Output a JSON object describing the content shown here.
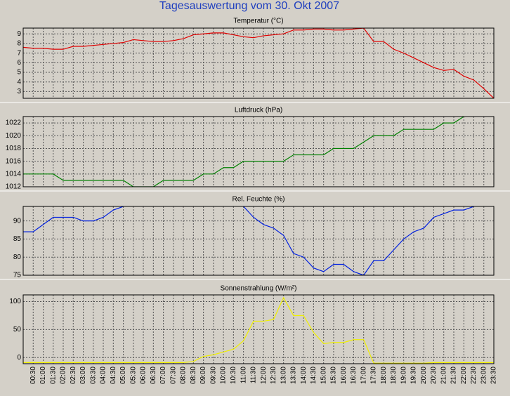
{
  "title": "Tagesauswertung vom 30. Okt 2007",
  "chart_data": [
    {
      "type": "line",
      "title": "Temperatur (°C)",
      "color": "#e00000",
      "grid": true,
      "ylim": [
        2.3,
        9.6
      ],
      "yticks": [
        3,
        4,
        5,
        6,
        7,
        8,
        9
      ],
      "values": [
        7.6,
        7.5,
        7.5,
        7.4,
        7.4,
        7.7,
        7.7,
        7.8,
        7.9,
        8.0,
        8.1,
        8.4,
        8.3,
        8.2,
        8.2,
        8.3,
        8.5,
        8.9,
        9.0,
        9.1,
        9.1,
        8.9,
        8.7,
        8.6,
        8.8,
        8.9,
        9.0,
        9.4,
        9.4,
        9.5,
        9.5,
        9.4,
        9.4,
        9.5,
        9.6,
        8.2,
        8.2,
        7.4,
        7.0,
        6.5,
        6.0,
        5.5,
        5.2,
        5.3,
        4.6,
        4.2,
        3.3,
        2.3
      ]
    },
    {
      "type": "line",
      "title": "Luftdruck (hPa)",
      "color": "#008000",
      "grid": true,
      "ylim": [
        1012,
        1023
      ],
      "yticks": [
        1012,
        1014,
        1016,
        1018,
        1020,
        1022
      ],
      "values": [
        1014,
        1014,
        1014,
        1014,
        1013,
        1013,
        1013,
        1013,
        1013,
        1013,
        1013,
        1012,
        1012,
        1012,
        1013,
        1013,
        1013,
        1013,
        1014,
        1014,
        1015,
        1015,
        1016,
        1016,
        1016,
        1016,
        1016,
        1017,
        1017,
        1017,
        1017,
        1018,
        1018,
        1018,
        1019,
        1020,
        1020,
        1020,
        1021,
        1021,
        1021,
        1021,
        1022,
        1022,
        1023,
        null,
        null,
        null
      ]
    },
    {
      "type": "line",
      "title": "Rel. Feuchte (%)",
      "color": "#0020e0",
      "grid": true,
      "ylim": [
        75,
        94
      ],
      "yticks": [
        75,
        80,
        85,
        90
      ],
      "values": [
        87,
        87,
        89,
        91,
        91,
        91,
        90,
        90,
        91,
        93,
        94,
        null,
        null,
        null,
        null,
        null,
        null,
        null,
        null,
        null,
        null,
        null,
        94,
        91,
        89,
        88,
        86,
        81,
        80,
        77,
        76,
        78,
        78,
        76,
        75,
        79,
        79,
        82,
        85,
        87,
        88,
        91,
        92,
        93,
        93,
        94,
        null,
        null
      ]
    },
    {
      "type": "line",
      "title": "Sonnenstrahlung (W/m²)",
      "color": "#f0f000",
      "grid": true,
      "ylim": [
        -11,
        112
      ],
      "yticks": [
        0,
        50,
        100
      ],
      "categories": [
        null,
        "00:30",
        "01:00",
        "01:30",
        "02:00",
        "02:30",
        "03:00",
        "03:30",
        "04:00",
        "04:30",
        "05:00",
        "05:30",
        "06:00",
        "06:30",
        "07:00",
        "07:30",
        "08:00",
        "08:30",
        "09:00",
        "09:30",
        "10:00",
        "10:30",
        "11:00",
        "11:30",
        "12:00",
        "12:30",
        "13:00",
        "13:30",
        "14:00",
        "14:30",
        "15:00",
        "15:30",
        "16:00",
        "16:30",
        "17:00",
        "17:30",
        "18:00",
        "18:30",
        "19:00",
        "19:30",
        "20:00",
        "20:30",
        "21:00",
        "21:30",
        "22:00",
        "22:30",
        "23:00",
        "23:30"
      ],
      "values": [
        -9,
        -9,
        -9,
        -9,
        -9,
        -9,
        -9,
        -9,
        -9,
        -9,
        -9,
        -9,
        -9,
        -9,
        -9,
        -9,
        -9,
        -7,
        2,
        5,
        10,
        15,
        30,
        65,
        65,
        68,
        107,
        75,
        75,
        45,
        25,
        27,
        27,
        32,
        32,
        -10,
        -10,
        -10,
        -10,
        -10,
        -10,
        -9,
        -9,
        -9,
        -9,
        -9,
        -9,
        -9
      ]
    }
  ]
}
